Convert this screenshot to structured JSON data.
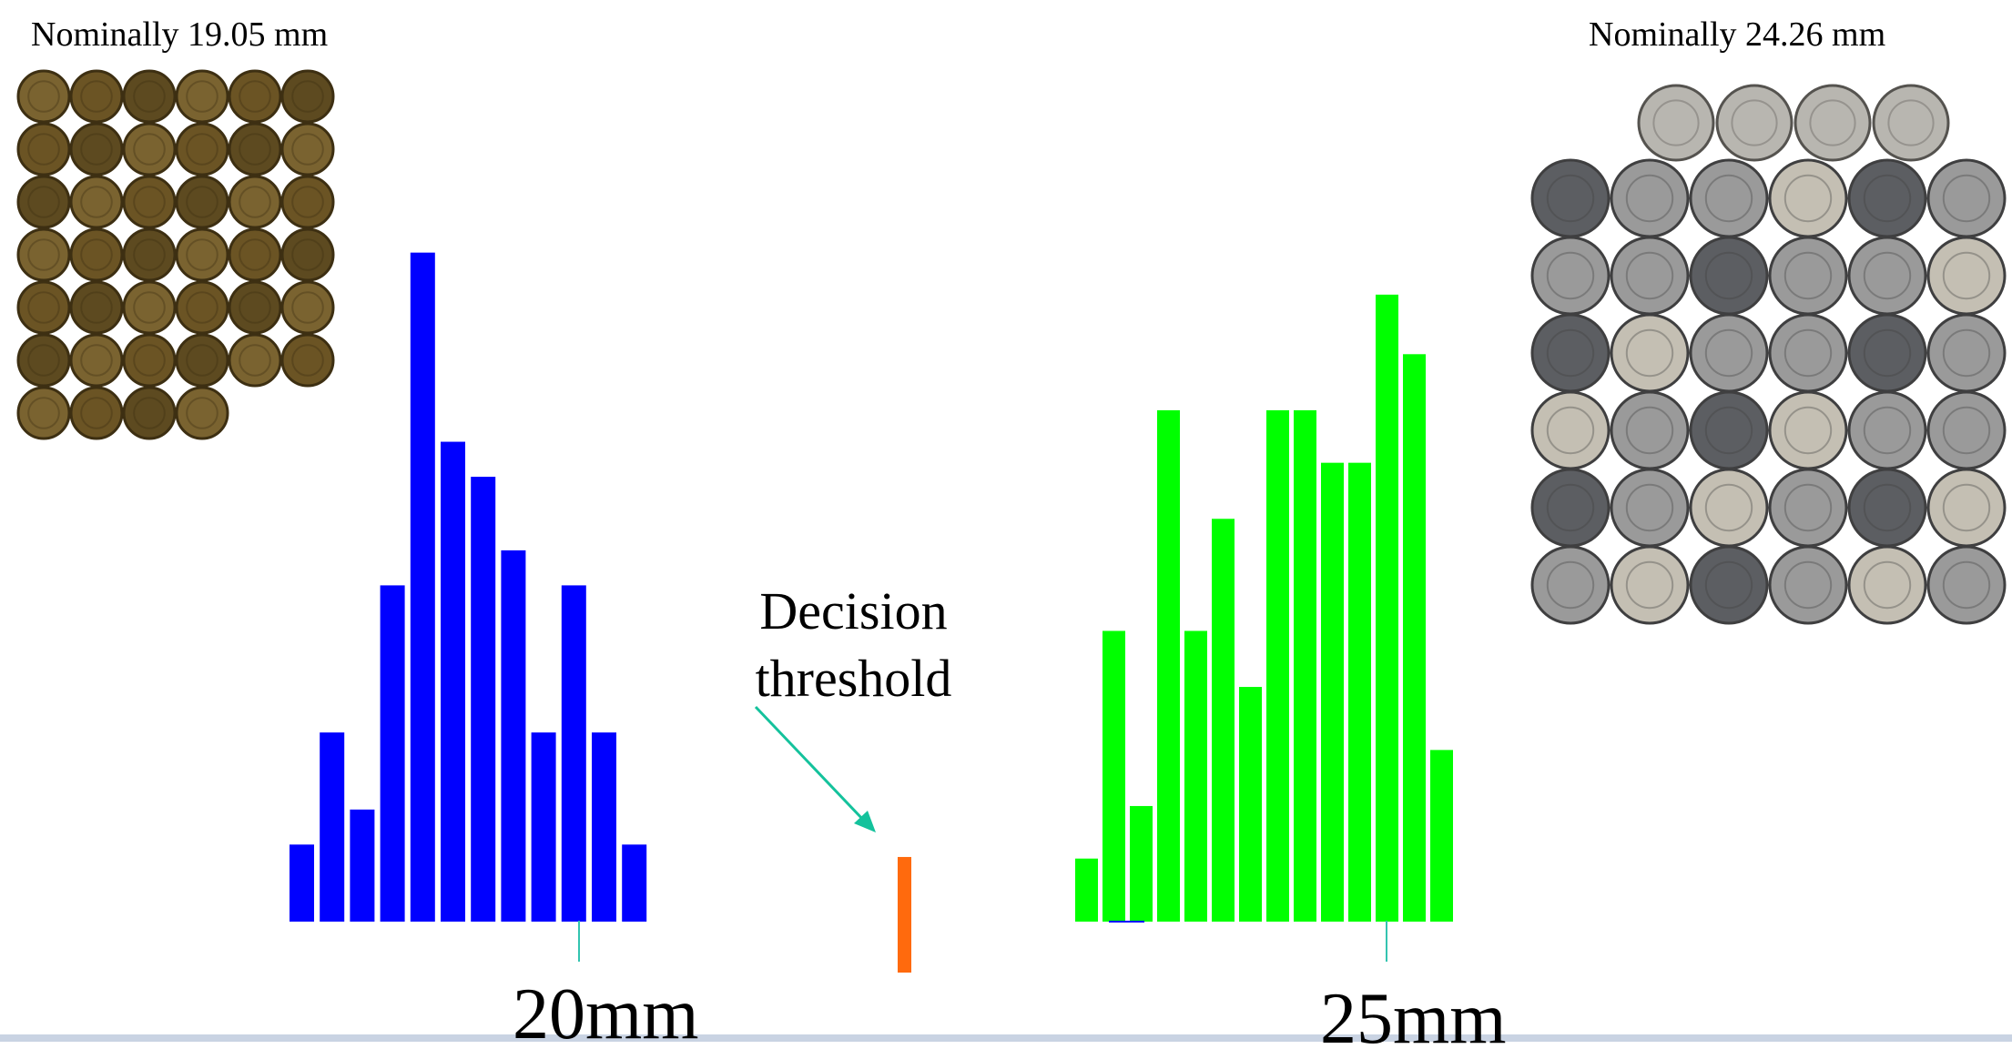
{
  "left_caption": "Nominally 19.05 mm",
  "right_caption": "Nominally 24.26 mm",
  "annotation": "Decision threshold",
  "colors": {
    "penny_series": "#0000ff",
    "quarter_series": "#00ff00",
    "threshold": "#ff6a0d",
    "arrow": "#14c29c",
    "tick_line": "#33c4b0",
    "penny_coin": "#6b5424",
    "quarter_coin": "#9a9a9a"
  },
  "chart_data": {
    "type": "bar",
    "xlabel": "",
    "ylabel": "",
    "xtick_labels": [
      "20mm",
      "25mm"
    ],
    "series": [
      {
        "values": [
          2.2,
          5.4,
          3.2,
          9.6,
          19.1,
          13.7,
          12.7,
          10.6,
          5.4,
          9.6,
          5.4,
          2.2
        ]
      },
      {
        "values": [
          1.8,
          8.3,
          3.3,
          14.6,
          8.3,
          11.5,
          6.7,
          14.6,
          14.6,
          13.1,
          13.1,
          17.9,
          16.2,
          4.9
        ]
      }
    ],
    "threshold": {
      "value": 3.3
    }
  }
}
